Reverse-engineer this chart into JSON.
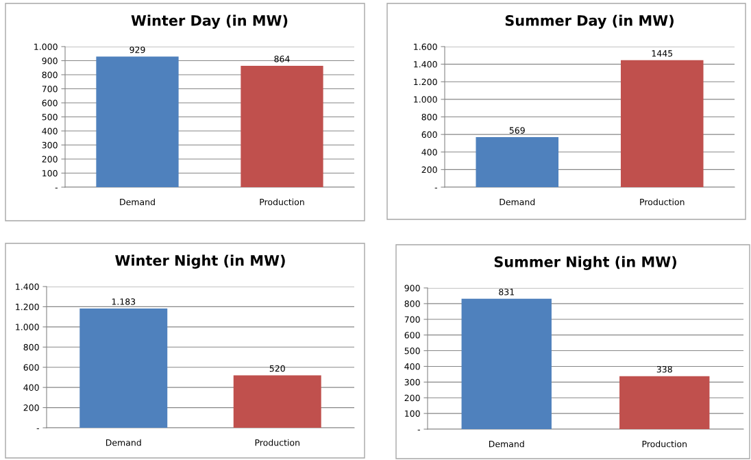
{
  "chart_data": [
    {
      "type": "bar",
      "title": "Winter Day (in MW)",
      "categories": [
        "Demand",
        "Production"
      ],
      "values": [
        929,
        864
      ],
      "colors": [
        "#4f81bd",
        "#c0504d"
      ],
      "ylim": [
        0,
        1000
      ],
      "yticks": [
        {
          "value": 0,
          "label": "-"
        },
        100,
        200,
        300,
        400,
        500,
        600,
        700,
        800,
        900,
        {
          "value": 1000,
          "label": "1.000"
        }
      ],
      "grid": "y",
      "value_labels": [
        "929",
        "864"
      ]
    },
    {
      "type": "bar",
      "title": "Summer Day (in MW)",
      "categories": [
        "Demand",
        "Production"
      ],
      "values": [
        569,
        1445
      ],
      "colors": [
        "#4f81bd",
        "#c0504d"
      ],
      "ylim": [
        0,
        1600
      ],
      "yticks": [
        {
          "value": 0,
          "label": "-"
        },
        200,
        400,
        600,
        800,
        {
          "value": 1000,
          "label": "1.000"
        },
        {
          "value": 1200,
          "label": "1.200"
        },
        {
          "value": 1400,
          "label": "1.400"
        },
        {
          "value": 1600,
          "label": "1.600"
        }
      ],
      "grid": "y",
      "value_labels": [
        "569",
        "1445"
      ]
    },
    {
      "type": "bar",
      "title": "Winter Night (in MW)",
      "categories": [
        "Demand",
        "Production"
      ],
      "values": [
        1183,
        520
      ],
      "colors": [
        "#4f81bd",
        "#c0504d"
      ],
      "ylim": [
        0,
        1400
      ],
      "yticks": [
        {
          "value": 0,
          "label": "-"
        },
        200,
        400,
        600,
        800,
        {
          "value": 1000,
          "label": "1.000"
        },
        {
          "value": 1200,
          "label": "1.200"
        },
        {
          "value": 1400,
          "label": "1.400"
        }
      ],
      "grid": "y",
      "value_labels": [
        "1.183",
        "520"
      ]
    },
    {
      "type": "bar",
      "title": "Summer Night (in MW)",
      "categories": [
        "Demand",
        "Production"
      ],
      "values": [
        831,
        338
      ],
      "colors": [
        "#4f81bd",
        "#c0504d"
      ],
      "ylim": [
        0,
        900
      ],
      "yticks": [
        {
          "value": 0,
          "label": "-"
        },
        100,
        200,
        300,
        400,
        500,
        600,
        700,
        800,
        900
      ],
      "grid": "y",
      "value_labels": [
        "831",
        "338"
      ]
    }
  ]
}
